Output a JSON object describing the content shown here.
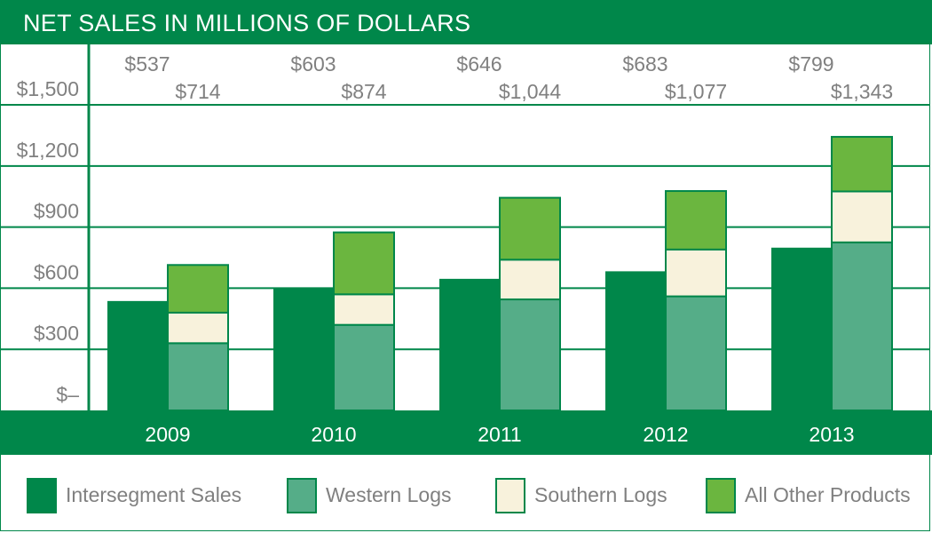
{
  "colors": {
    "intersegment": "#00874a",
    "western": "#55ad88",
    "southern": "#f8f2dc",
    "other": "#6bb63f",
    "border": "#00874a",
    "text_gray": "#808080"
  },
  "chart_data": {
    "type": "bar",
    "title": "NET SALES IN MILLIONS OF DOLLARS",
    "categories": [
      "2009",
      "2010",
      "2011",
      "2012",
      "2013"
    ],
    "ylim": [
      0,
      1740
    ],
    "yticks": [
      0,
      300,
      600,
      900,
      1200,
      1500
    ],
    "ytick_labels": [
      "$–",
      "$300",
      "$600",
      "$900",
      "$1,200",
      "$1,500"
    ],
    "grid": true,
    "legend_position": "bottom",
    "intersegment": {
      "name": "Intersegment Sales",
      "values": [
        537,
        603,
        646,
        683,
        799
      ],
      "labels": [
        "$537",
        "$603",
        "$646",
        "$683",
        "$799"
      ]
    },
    "stack_series": [
      {
        "name": "Western Logs",
        "key": "western",
        "values": [
          330,
          420,
          545,
          560,
          825
        ]
      },
      {
        "name": "Southern Logs",
        "key": "southern",
        "values": [
          150,
          150,
          195,
          230,
          250
        ]
      },
      {
        "name": "All Other Products",
        "key": "other",
        "values": [
          234,
          304,
          304,
          287,
          268
        ]
      }
    ],
    "stack_totals": [
      714,
      874,
      1044,
      1077,
      1343
    ],
    "stack_total_labels": [
      "$714",
      "$874",
      "$1,044",
      "$1,077",
      "$1,343"
    ]
  },
  "legend": [
    {
      "label": "Intersegment Sales",
      "key": "intersegment"
    },
    {
      "label": "Western Logs",
      "key": "western"
    },
    {
      "label": "Southern Logs",
      "key": "southern"
    },
    {
      "label": "All Other Products",
      "key": "other"
    }
  ]
}
